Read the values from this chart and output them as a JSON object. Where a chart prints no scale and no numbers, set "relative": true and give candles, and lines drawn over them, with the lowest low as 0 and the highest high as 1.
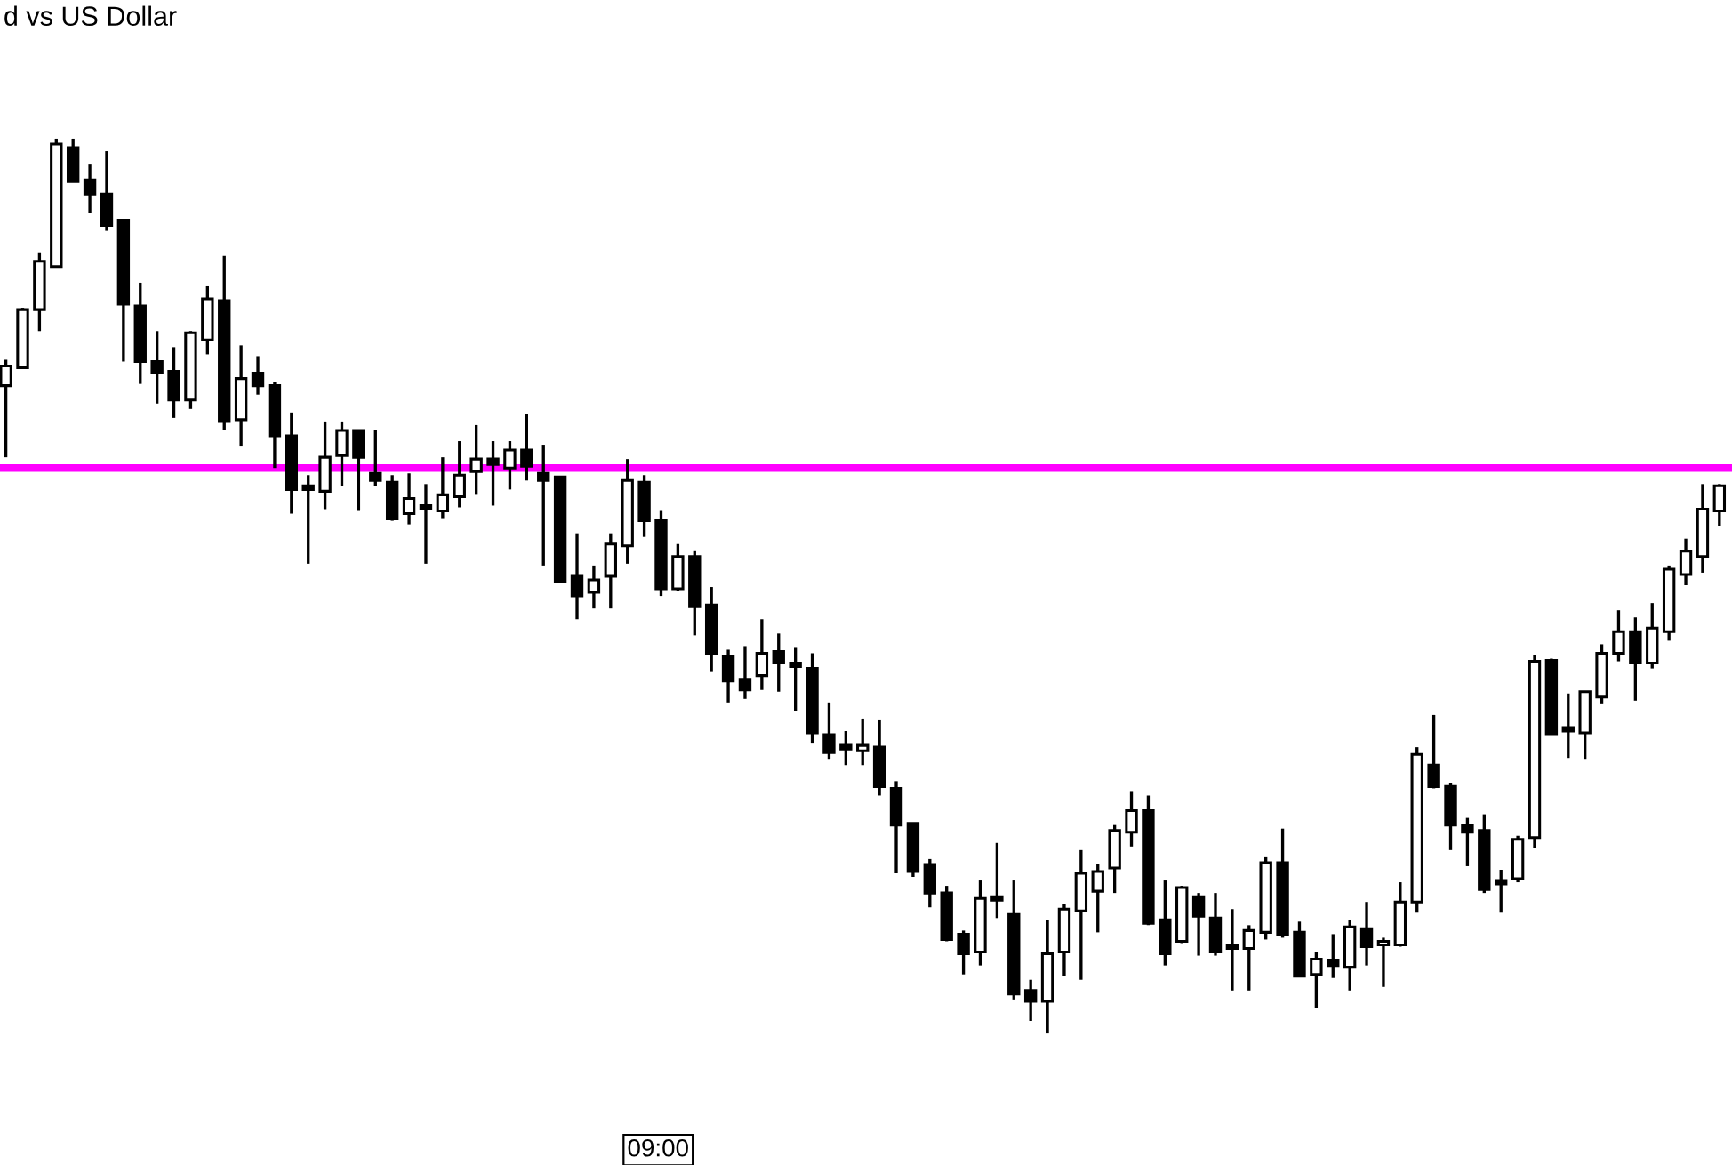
{
  "chart_data": {
    "type": "candlestick",
    "title": "d vs US Dollar",
    "relative": true,
    "categories": [
      null,
      null,
      null,
      null,
      null,
      null,
      null,
      null,
      null,
      null,
      null,
      null,
      null,
      null,
      null,
      null,
      null,
      null,
      null,
      null,
      null,
      null,
      null,
      null,
      null,
      null,
      null,
      null,
      null,
      null,
      null,
      null,
      null,
      null,
      null,
      null,
      null,
      null,
      null,
      null,
      null,
      null,
      null,
      null,
      null,
      null,
      null,
      null,
      null,
      null,
      null,
      null,
      null,
      null,
      null,
      null,
      null,
      null,
      null,
      null,
      null,
      null,
      null,
      null,
      null,
      null,
      null,
      null,
      null,
      null,
      null,
      null,
      null,
      null,
      null,
      null,
      null,
      null,
      null,
      null,
      null,
      null,
      null,
      null,
      null,
      null,
      null,
      null,
      null,
      null,
      null,
      null,
      null,
      null,
      null,
      null,
      null,
      null,
      null,
      null,
      null,
      null,
      null
    ],
    "ohlc": [
      [
        0.724,
        0.753,
        0.644,
        0.746
      ],
      [
        0.744,
        0.811,
        0.744,
        0.809
      ],
      [
        0.809,
        0.873,
        0.785,
        0.863
      ],
      [
        0.857,
        1,
        0.857,
        0.994
      ],
      [
        0.99,
        1,
        0.952,
        0.952
      ],
      [
        0.954,
        0.972,
        0.917,
        0.938
      ],
      [
        0.938,
        0.986,
        0.897,
        0.903
      ],
      [
        0.909,
        0.909,
        0.751,
        0.815
      ],
      [
        0.813,
        0.839,
        0.726,
        0.751
      ],
      [
        0.751,
        0.785,
        0.704,
        0.738
      ],
      [
        0.74,
        0.767,
        0.688,
        0.708
      ],
      [
        0.708,
        0.785,
        0.698,
        0.783
      ],
      [
        0.775,
        0.835,
        0.759,
        0.821
      ],
      [
        0.819,
        0.869,
        0.674,
        0.684
      ],
      [
        0.686,
        0.769,
        0.656,
        0.732
      ],
      [
        0.738,
        0.757,
        0.714,
        0.724
      ],
      [
        0.724,
        0.728,
        0.632,
        0.668
      ],
      [
        0.668,
        0.694,
        0.581,
        0.608
      ],
      [
        0.61,
        0.624,
        0.525,
        0.608
      ],
      [
        0.606,
        0.684,
        0.586,
        0.644
      ],
      [
        0.646,
        0.684,
        0.612,
        0.674
      ],
      [
        0.674,
        0.674,
        0.584,
        0.644
      ],
      [
        0.626,
        0.674,
        0.612,
        0.618
      ],
      [
        0.616,
        0.624,
        0.573,
        0.575
      ],
      [
        0.581,
        0.626,
        0.569,
        0.598
      ],
      [
        0.59,
        0.614,
        0.525,
        0.586
      ],
      [
        0.584,
        0.644,
        0.575,
        0.602
      ],
      [
        0.6,
        0.662,
        0.588,
        0.624
      ],
      [
        0.628,
        0.68,
        0.602,
        0.642
      ],
      [
        0.642,
        0.662,
        0.59,
        0.636
      ],
      [
        0.632,
        0.662,
        0.608,
        0.652
      ],
      [
        0.652,
        0.692,
        0.618,
        0.634
      ],
      [
        0.626,
        0.658,
        0.523,
        0.618
      ],
      [
        0.622,
        0.622,
        0.503,
        0.505
      ],
      [
        0.511,
        0.559,
        0.463,
        0.489
      ],
      [
        0.493,
        0.523,
        0.475,
        0.507
      ],
      [
        0.511,
        0.559,
        0.475,
        0.547
      ],
      [
        0.545,
        0.642,
        0.525,
        0.618
      ],
      [
        0.616,
        0.624,
        0.555,
        0.573
      ],
      [
        0.573,
        0.584,
        0.489,
        0.497
      ],
      [
        0.497,
        0.547,
        0.495,
        0.533
      ],
      [
        0.533,
        0.539,
        0.445,
        0.477
      ],
      [
        0.479,
        0.499,
        0.404,
        0.425
      ],
      [
        0.421,
        0.429,
        0.37,
        0.394
      ],
      [
        0.396,
        0.433,
        0.374,
        0.384
      ],
      [
        0.4,
        0.463,
        0.384,
        0.425
      ],
      [
        0.427,
        0.447,
        0.382,
        0.414
      ],
      [
        0.412,
        0.431,
        0.36,
        0.41
      ],
      [
        0.408,
        0.425,
        0.324,
        0.336
      ],
      [
        0.334,
        0.37,
        0.306,
        0.314
      ],
      [
        0.322,
        0.338,
        0.3,
        0.318
      ],
      [
        0.316,
        0.352,
        0.3,
        0.322
      ],
      [
        0.32,
        0.35,
        0.266,
        0.276
      ],
      [
        0.274,
        0.282,
        0.179,
        0.233
      ],
      [
        0.235,
        0.235,
        0.175,
        0.181
      ],
      [
        0.189,
        0.195,
        0.141,
        0.157
      ],
      [
        0.157,
        0.165,
        0.103,
        0.105
      ],
      [
        0.111,
        0.115,
        0.066,
        0.089
      ],
      [
        0.091,
        0.171,
        0.076,
        0.151
      ],
      [
        0.151,
        0.213,
        0.129,
        0.149
      ],
      [
        0.133,
        0.171,
        0.038,
        0.044
      ],
      [
        0.048,
        0.06,
        0.014,
        0.036
      ],
      [
        0.036,
        0.127,
        0,
        0.089
      ],
      [
        0.091,
        0.145,
        0.064,
        0.139
      ],
      [
        0.137,
        0.205,
        0.06,
        0.179
      ],
      [
        0.159,
        0.189,
        0.113,
        0.181
      ],
      [
        0.185,
        0.233,
        0.157,
        0.227
      ],
      [
        0.225,
        0.27,
        0.209,
        0.249
      ],
      [
        0.249,
        0.266,
        0.121,
        0.123
      ],
      [
        0.127,
        0.171,
        0.076,
        0.089
      ],
      [
        0.103,
        0.165,
        0.101,
        0.163
      ],
      [
        0.153,
        0.157,
        0.087,
        0.131
      ],
      [
        0.129,
        0.157,
        0.087,
        0.091
      ],
      [
        0.097,
        0.139,
        0.048,
        0.095
      ],
      [
        0.095,
        0.121,
        0.048,
        0.115
      ],
      [
        0.113,
        0.197,
        0.105,
        0.191
      ],
      [
        0.191,
        0.229,
        0.107,
        0.111
      ],
      [
        0.113,
        0.125,
        0.064,
        0.064
      ],
      [
        0.066,
        0.091,
        0.028,
        0.083
      ],
      [
        0.082,
        0.111,
        0.062,
        0.076
      ],
      [
        0.074,
        0.127,
        0.048,
        0.119
      ],
      [
        0.117,
        0.147,
        0.076,
        0.097
      ],
      [
        0.099,
        0.107,
        0.052,
        0.103
      ],
      [
        0.099,
        0.169,
        0.097,
        0.147
      ],
      [
        0.147,
        0.32,
        0.135,
        0.312
      ],
      [
        0.3,
        0.356,
        0.274,
        0.276
      ],
      [
        0.276,
        0.28,
        0.205,
        0.233
      ],
      [
        0.233,
        0.241,
        0.187,
        0.225
      ],
      [
        0.227,
        0.245,
        0.157,
        0.161
      ],
      [
        0.169,
        0.183,
        0.135,
        0.167
      ],
      [
        0.173,
        0.221,
        0.169,
        0.217
      ],
      [
        0.219,
        0.423,
        0.207,
        0.416
      ],
      [
        0.417,
        0.419,
        0.334,
        0.334
      ],
      [
        0.34,
        0.38,
        0.308,
        0.338
      ],
      [
        0.336,
        0.382,
        0.306,
        0.382
      ],
      [
        0.376,
        0.435,
        0.368,
        0.425
      ],
      [
        0.425,
        0.473,
        0.416,
        0.449
      ],
      [
        0.449,
        0.465,
        0.372,
        0.414
      ],
      [
        0.414,
        0.481,
        0.408,
        0.453
      ],
      [
        0.449,
        0.523,
        0.439,
        0.519
      ],
      [
        0.513,
        0.553,
        0.501,
        0.539
      ],
      [
        0.533,
        0.614,
        0.515,
        0.586
      ],
      [
        0.584,
        0.614,
        0.567,
        0.612
      ]
    ],
    "ref_lines": [
      {
        "axis": "y",
        "value": 0.632,
        "color": "#ff00ff",
        "line_style": "solid"
      }
    ],
    "annotations": [
      "09:00"
    ]
  }
}
